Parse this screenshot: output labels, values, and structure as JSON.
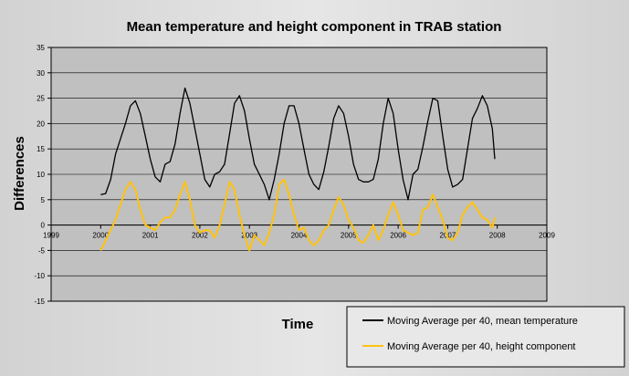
{
  "chart_data": {
    "type": "line",
    "title": "Mean temperature and height component in TRAB station",
    "xlabel": "Time",
    "ylabel": "Differences",
    "xlim": [
      1999,
      2009
    ],
    "ylim": [
      -15,
      35
    ],
    "x_ticks": [
      1999,
      2000,
      2001,
      2002,
      2003,
      2004,
      2005,
      2006,
      2007,
      2008,
      2009
    ],
    "y_ticks": [
      -15,
      -10,
      -5,
      0,
      5,
      10,
      15,
      20,
      25,
      30,
      35
    ],
    "grid": true,
    "legend_position": "bottom-right",
    "colors": {
      "plot_area": "#c0c0c0",
      "grid": "#000000"
    },
    "series": [
      {
        "name": "Moving Average per 40, mean temperature",
        "color": "#000000",
        "x": [
          2000.0,
          2000.1,
          2000.2,
          2000.3,
          2000.4,
          2000.5,
          2000.6,
          2000.7,
          2000.8,
          2000.9,
          2001.0,
          2001.1,
          2001.2,
          2001.3,
          2001.4,
          2001.5,
          2001.6,
          2001.7,
          2001.8,
          2001.9,
          2002.0,
          2002.1,
          2002.2,
          2002.3,
          2002.4,
          2002.5,
          2002.6,
          2002.7,
          2002.8,
          2002.9,
          2003.0,
          2003.1,
          2003.2,
          2003.3,
          2003.4,
          2003.5,
          2003.6,
          2003.7,
          2003.8,
          2003.9,
          2004.0,
          2004.1,
          2004.2,
          2004.3,
          2004.4,
          2004.5,
          2004.6,
          2004.7,
          2004.8,
          2004.9,
          2005.0,
          2005.1,
          2005.2,
          2005.3,
          2005.4,
          2005.5,
          2005.6,
          2005.7,
          2005.8,
          2005.9,
          2006.0,
          2006.1,
          2006.2,
          2006.3,
          2006.4,
          2006.5,
          2006.6,
          2006.7,
          2006.8,
          2006.9,
          2007.0,
          2007.1,
          2007.2,
          2007.3,
          2007.4,
          2007.5,
          2007.6,
          2007.7,
          2007.8,
          2007.9,
          2007.95
        ],
        "y": [
          6,
          6.2,
          9,
          14,
          17,
          20,
          23.5,
          24.5,
          22,
          17.5,
          13,
          9.5,
          8.5,
          12,
          12.5,
          16,
          22,
          27,
          24,
          19,
          14,
          9,
          7.5,
          10,
          10.5,
          12,
          18,
          24,
          25.5,
          22.5,
          17,
          12,
          10,
          8,
          5,
          9,
          14,
          20,
          23.5,
          23.5,
          20,
          15,
          10,
          8,
          7,
          10.5,
          15.5,
          21,
          23.5,
          22,
          17.5,
          12,
          9,
          8.5,
          8.5,
          9,
          13,
          20,
          25,
          22,
          15,
          9,
          5,
          10,
          11,
          15.5,
          20.5,
          25,
          24.5,
          17.5,
          11,
          7.5,
          8,
          9,
          15,
          21,
          23,
          25.5,
          23.5,
          19,
          13
        ]
      },
      {
        "name": "Moving Average  per 40, height component",
        "color": "#ffc20e",
        "x": [
          2000.0,
          2000.1,
          2000.2,
          2000.3,
          2000.4,
          2000.5,
          2000.6,
          2000.7,
          2000.8,
          2000.9,
          2001.0,
          2001.1,
          2001.2,
          2001.3,
          2001.4,
          2001.5,
          2001.6,
          2001.7,
          2001.8,
          2001.9,
          2002.0,
          2002.1,
          2002.2,
          2002.3,
          2002.4,
          2002.5,
          2002.6,
          2002.7,
          2002.8,
          2002.9,
          2003.0,
          2003.1,
          2003.2,
          2003.3,
          2003.4,
          2003.5,
          2003.6,
          2003.7,
          2003.8,
          2003.9,
          2004.0,
          2004.1,
          2004.2,
          2004.3,
          2004.4,
          2004.5,
          2004.6,
          2004.7,
          2004.8,
          2004.9,
          2005.0,
          2005.1,
          2005.2,
          2005.3,
          2005.4,
          2005.5,
          2005.6,
          2005.7,
          2005.8,
          2005.9,
          2006.0,
          2006.1,
          2006.2,
          2006.3,
          2006.4,
          2006.5,
          2006.6,
          2006.7,
          2006.8,
          2006.9,
          2007.0,
          2007.1,
          2007.2,
          2007.3,
          2007.4,
          2007.5,
          2007.6,
          2007.7,
          2007.8,
          2007.9,
          2007.95
        ],
        "y": [
          -5,
          -3,
          -1,
          1,
          4,
          7,
          8.5,
          7,
          3,
          0,
          -0.5,
          -1,
          0.5,
          1.5,
          1.5,
          3,
          6,
          8.5,
          5,
          0,
          -1.5,
          -1,
          -1,
          -2.5,
          0,
          4,
          8.5,
          7,
          2,
          -2,
          -5,
          -2,
          -3,
          -4,
          -1.5,
          2,
          8,
          9,
          6,
          2,
          -1,
          -0.5,
          -3,
          -4,
          -3,
          -1,
          0,
          3,
          5.5,
          4,
          1,
          -0.5,
          -3,
          -3.5,
          -2,
          0,
          -3,
          -1,
          2,
          4.5,
          2,
          -1,
          -1.5,
          -2,
          -1.5,
          3,
          3.5,
          6,
          3.5,
          1,
          -2.5,
          -3,
          -1.5,
          2,
          3.5,
          4.5,
          3,
          1.5,
          1,
          -0.5,
          1.5
        ]
      }
    ]
  }
}
